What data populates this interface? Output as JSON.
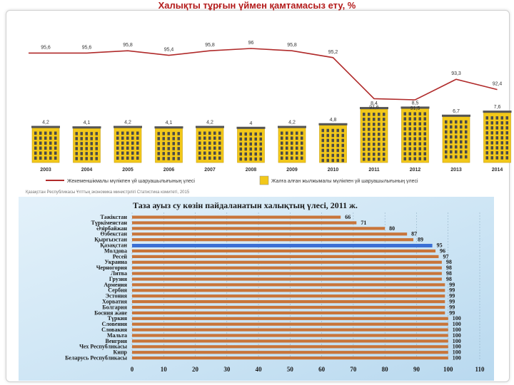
{
  "page_title": "Халықты тұрғын үймен қамтамасыз ету, %",
  "colors": {
    "title": "#b31b1b",
    "line": "#b02a2a",
    "building": "#f2c81a",
    "window": "#4a4a4a",
    "bar": "#c8753a",
    "highlight": "#3b6fd4",
    "water_bg": "#cfe6f5"
  },
  "chart_data": [
    {
      "type": "line+bar",
      "years": [
        "2003",
        "2004",
        "2005",
        "2006",
        "2007",
        "2008",
        "2009",
        "2010",
        "2011",
        "2012",
        "2013",
        "2014"
      ],
      "line_series": {
        "name": "Жекеменшікмалы мүлікпен үй шаруашылығының үлесі",
        "values": [
          95.6,
          95.6,
          95.8,
          95.4,
          95.8,
          96,
          95.8,
          95.2,
          91.6,
          91.5,
          93.3,
          92.4
        ],
        "labels": [
          "95,6",
          "95,6",
          "95,8",
          "95,4",
          "95,8",
          "96",
          "95,8",
          "95,2",
          "91,6",
          "91,5",
          "93,3",
          "92,4"
        ]
      },
      "bar_series": {
        "name": "Жалға алған жылжымалы мүлікпен үй шаруашылығының үлесі",
        "values": [
          4.2,
          4.1,
          4.2,
          4.1,
          4.2,
          4,
          4.2,
          4.8,
          8.4,
          8.5,
          6.7,
          7.6
        ],
        "labels": [
          "4,2",
          "4,1",
          "4,2",
          "4,1",
          "4,2",
          "4",
          "4,2",
          "4,8",
          "8,4",
          "8,5",
          "6,7",
          "7,6"
        ]
      },
      "source": "Қазақстан Республикасы Ұлттық экономика министрлігі Статистика комитеті, 2015"
    },
    {
      "type": "bar",
      "orientation": "horizontal",
      "title": "Таза ауыз су көзін пайдаланатын халықтың үлесі, 2011 ж.",
      "categories": [
        "Тәжікстан",
        "Түркіменстан",
        "Әзірбайжан",
        "Өзбекстан",
        "Қырғызстан",
        "Қазақстан",
        "Молдова",
        "Ресей",
        "Украина",
        "Черногория",
        "Литва",
        "Грузия",
        "Армения",
        "Сербия",
        "Эстония",
        "Хорватия",
        "Болгария",
        "Босния және",
        "Түркия",
        "Словения",
        "Словакия",
        "Мальта",
        "Венгрия",
        "Чех Республикасы",
        "Кипр",
        "Беларусь Республикасы"
      ],
      "values": [
        66,
        71,
        80,
        87,
        89,
        95,
        96,
        97,
        98,
        98,
        98,
        98,
        99,
        99,
        99,
        99,
        99,
        99,
        100,
        100,
        100,
        100,
        100,
        100,
        100,
        100
      ],
      "highlight": "Қазақстан",
      "xlim": [
        0,
        110
      ],
      "xticks": [
        0,
        10,
        20,
        30,
        40,
        50,
        60,
        70,
        80,
        90,
        100,
        110
      ]
    }
  ]
}
